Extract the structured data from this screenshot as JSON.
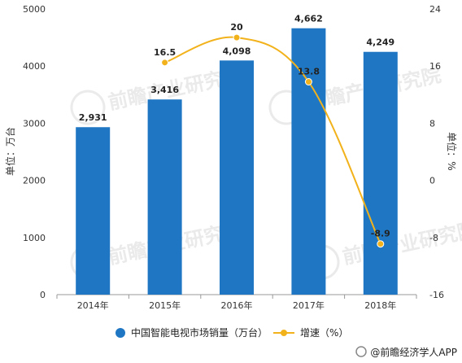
{
  "chart_data": {
    "type": "bar",
    "categories": [
      "2014年",
      "2015年",
      "2016年",
      "2017年",
      "2018年"
    ],
    "series": [
      {
        "name": "中国智能电视市场销量（万台）",
        "type": "bar",
        "axis": "left",
        "values": [
          2931,
          3416,
          4098,
          4662,
          4249
        ],
        "labels": [
          "2,931",
          "3,416",
          "4,098",
          "4,662",
          "4,249"
        ],
        "color": "#1f77c4"
      },
      {
        "name": "增速（%）",
        "type": "line",
        "axis": "right",
        "values": [
          null,
          16.5,
          20,
          13.8,
          -8.9
        ],
        "labels": [
          "",
          "16.5",
          "20",
          "13.8",
          "-8.9"
        ],
        "color": "#f2b21b"
      }
    ],
    "ylabel": "单位：万台",
    "y2label": "单位：%",
    "ylim": [
      0,
      5000
    ],
    "y2lim": [
      -16,
      24
    ],
    "yticks": [
      0,
      1000,
      2000,
      3000,
      4000,
      5000
    ],
    "y2ticks": [
      -16,
      -8,
      0,
      8,
      16,
      24
    ],
    "legend_position": "bottom",
    "grid": false
  },
  "watermark": "前瞻产业研究院",
  "footer": "@前瞻经济学人APP"
}
